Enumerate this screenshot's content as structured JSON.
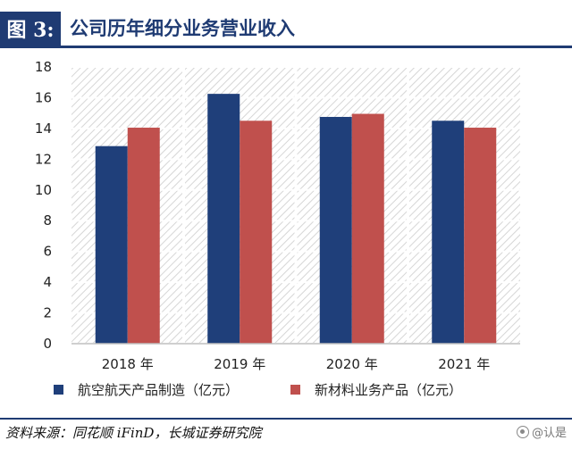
{
  "figure": {
    "label": "图 3:",
    "title": "公司历年细分业务营业收入"
  },
  "source": "资料来源：同花顺 iFinD，长城证券研究院",
  "watermark": "@认是",
  "colors": {
    "brand": "#1f3b73",
    "series_1": "#1f3f7a",
    "series_2": "#c0504d",
    "plot_hatch": "#d9d9d9"
  },
  "chart_data": {
    "type": "bar",
    "categories": [
      "2018 年",
      "2019 年",
      "2020 年",
      "2021 年"
    ],
    "series": [
      {
        "name": "航空航天产品制造（亿元）",
        "values": [
          12.85,
          16.25,
          14.75,
          14.5
        ]
      },
      {
        "name": "新材料业务产品（亿元）",
        "values": [
          14.05,
          14.5,
          14.95,
          14.05
        ]
      }
    ],
    "title": "",
    "xlabel": "",
    "ylabel": "",
    "ylim": [
      0,
      18
    ],
    "yticks": [
      0,
      2,
      4,
      6,
      8,
      10,
      12,
      14,
      16,
      18
    ],
    "grid": true,
    "legend_position": "bottom"
  }
}
